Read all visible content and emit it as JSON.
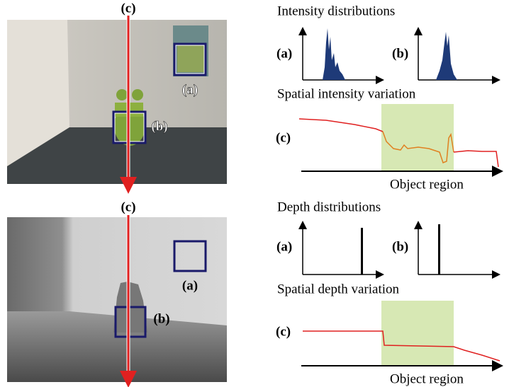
{
  "intensity_image": {
    "arrow_label": "(c)",
    "box_a_label": "(a)",
    "box_b_label": "(b)"
  },
  "depth_image": {
    "arrow_label": "(c)",
    "box_a_label": "(a)",
    "box_b_label": "(b)"
  },
  "intensity_panel": {
    "distributions_title": "Intensity distributions",
    "hist_a_label": "(a)",
    "hist_b_label": "(b)",
    "variation_title": "Spatial intensity variation",
    "variation_label": "(c)",
    "region_label": "Object region"
  },
  "depth_panel": {
    "distributions_title": "Depth distributions",
    "hist_a_label": "(a)",
    "hist_b_label": "(b)",
    "variation_title": "Spatial depth variation",
    "variation_label": "(c)",
    "region_label": "Object region"
  }
}
